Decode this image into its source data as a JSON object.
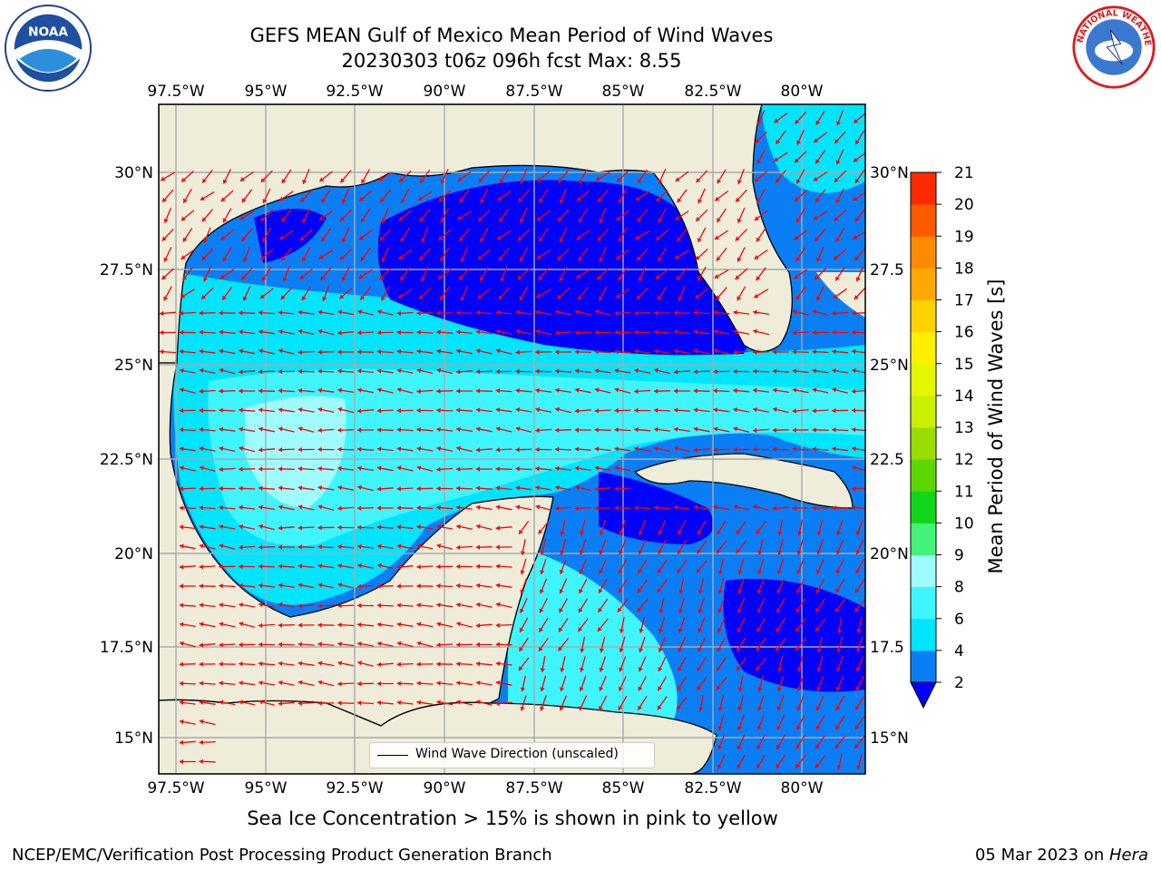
{
  "header": {
    "title_line1": "GEFS MEAN Gulf of Mexico Mean Period of Wind Waves",
    "title_line2": "20230303 t06z 096h fcst   Max: 8.55"
  },
  "logos": {
    "left": "NOAA",
    "right": "NATIONAL WEATHER SERVICE"
  },
  "map": {
    "lon_labels_top": [
      "97.5°W",
      "95°W",
      "92.5°W",
      "90°W",
      "87.5°W",
      "85°W",
      "82.5°W",
      "80°W"
    ],
    "lon_labels_bottom": [
      "97.5°W",
      "95°W",
      "92.5°W",
      "90°W",
      "87.5°W",
      "85°W",
      "82.5°W",
      "80°W"
    ],
    "lat_labels_left": [
      "30°N",
      "27.5°N",
      "25°N",
      "22.5°N",
      "20°N",
      "17.5°N",
      "15°N"
    ],
    "lat_labels_right": [
      "30°N",
      "27.5",
      "25°N",
      "22.5",
      "20°N",
      "17.5",
      "15°N"
    ],
    "legend_label": "Wind Wave Direction (unscaled)",
    "arrow_color": "#ff0000",
    "land_color": "#efedda"
  },
  "colorbar": {
    "label": "Mean Period of Wind Waves [s]",
    "ticks": [
      "2",
      "4",
      "6",
      "8",
      "9",
      "10",
      "11",
      "12",
      "13",
      "14",
      "15",
      "16",
      "17",
      "18",
      "19",
      "20",
      "21"
    ],
    "colors": [
      "#0a7ff5",
      "#00e5ff",
      "#3ff5ff",
      "#9efcff",
      "#44f27a",
      "#12d61a",
      "#5ed600",
      "#99dd00",
      "#c8f000",
      "#e6f500",
      "#fff000",
      "#ffd200",
      "#ffa800",
      "#ff8a00",
      "#ff5a00",
      "#ff2a00"
    ],
    "under_color": "#0000ff"
  },
  "notes": {
    "ice_note": "Sea Ice Concentration > 15% is shown in pink to yellow",
    "footer_left": "NCEP/EMC/Verification Post Processing Product Generation Branch",
    "footer_date": "05 Mar 2023 on ",
    "footer_host": "Hera"
  }
}
